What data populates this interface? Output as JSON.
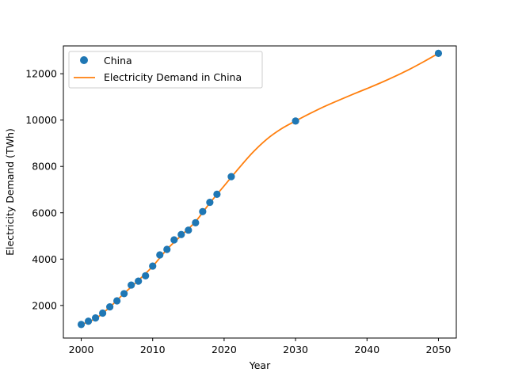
{
  "chart_data": {
    "type": "scatter",
    "xlabel": "Year",
    "ylabel": "Electricity Demand (TWh)",
    "xlim": [
      1997.5,
      2052.5
    ],
    "ylim": [
      594,
      13200
    ],
    "x_ticks": [
      2000,
      2010,
      2020,
      2030,
      2040,
      2050
    ],
    "y_ticks": [
      2000,
      4000,
      6000,
      8000,
      10000,
      12000
    ],
    "grid": false,
    "legend_position": "top-left",
    "series": [
      {
        "name": "China",
        "kind": "scatter",
        "color": "#1f77b4",
        "x": [
          2000,
          2001,
          2002,
          2003,
          2004,
          2005,
          2006,
          2007,
          2008,
          2009,
          2010,
          2011,
          2012,
          2013,
          2014,
          2015,
          2016,
          2017,
          2018,
          2019,
          2021,
          2030,
          2050
        ],
        "y": [
          1180,
          1320,
          1460,
          1670,
          1940,
          2200,
          2510,
          2880,
          3050,
          3280,
          3700,
          4180,
          4420,
          4830,
          5060,
          5250,
          5570,
          6050,
          6450,
          6800,
          7560,
          9960,
          12880
        ]
      },
      {
        "name": "Electricity Demand in China",
        "kind": "line",
        "color": "#ff7f0e",
        "x": [
          2000,
          2002,
          2004,
          2006,
          2008,
          2010,
          2012,
          2014,
          2016,
          2018,
          2020,
          2022,
          2024,
          2026,
          2028,
          2030,
          2032,
          2034,
          2036,
          2038,
          2040,
          2042,
          2044,
          2046,
          2048,
          2050
        ],
        "y": [
          1180,
          1430,
          1930,
          2520,
          3080,
          3690,
          4420,
          5020,
          5620,
          6420,
          7160,
          7900,
          8600,
          9180,
          9620,
          9960,
          10280,
          10580,
          10850,
          11110,
          11360,
          11620,
          11900,
          12200,
          12530,
          12880
        ]
      }
    ]
  }
}
